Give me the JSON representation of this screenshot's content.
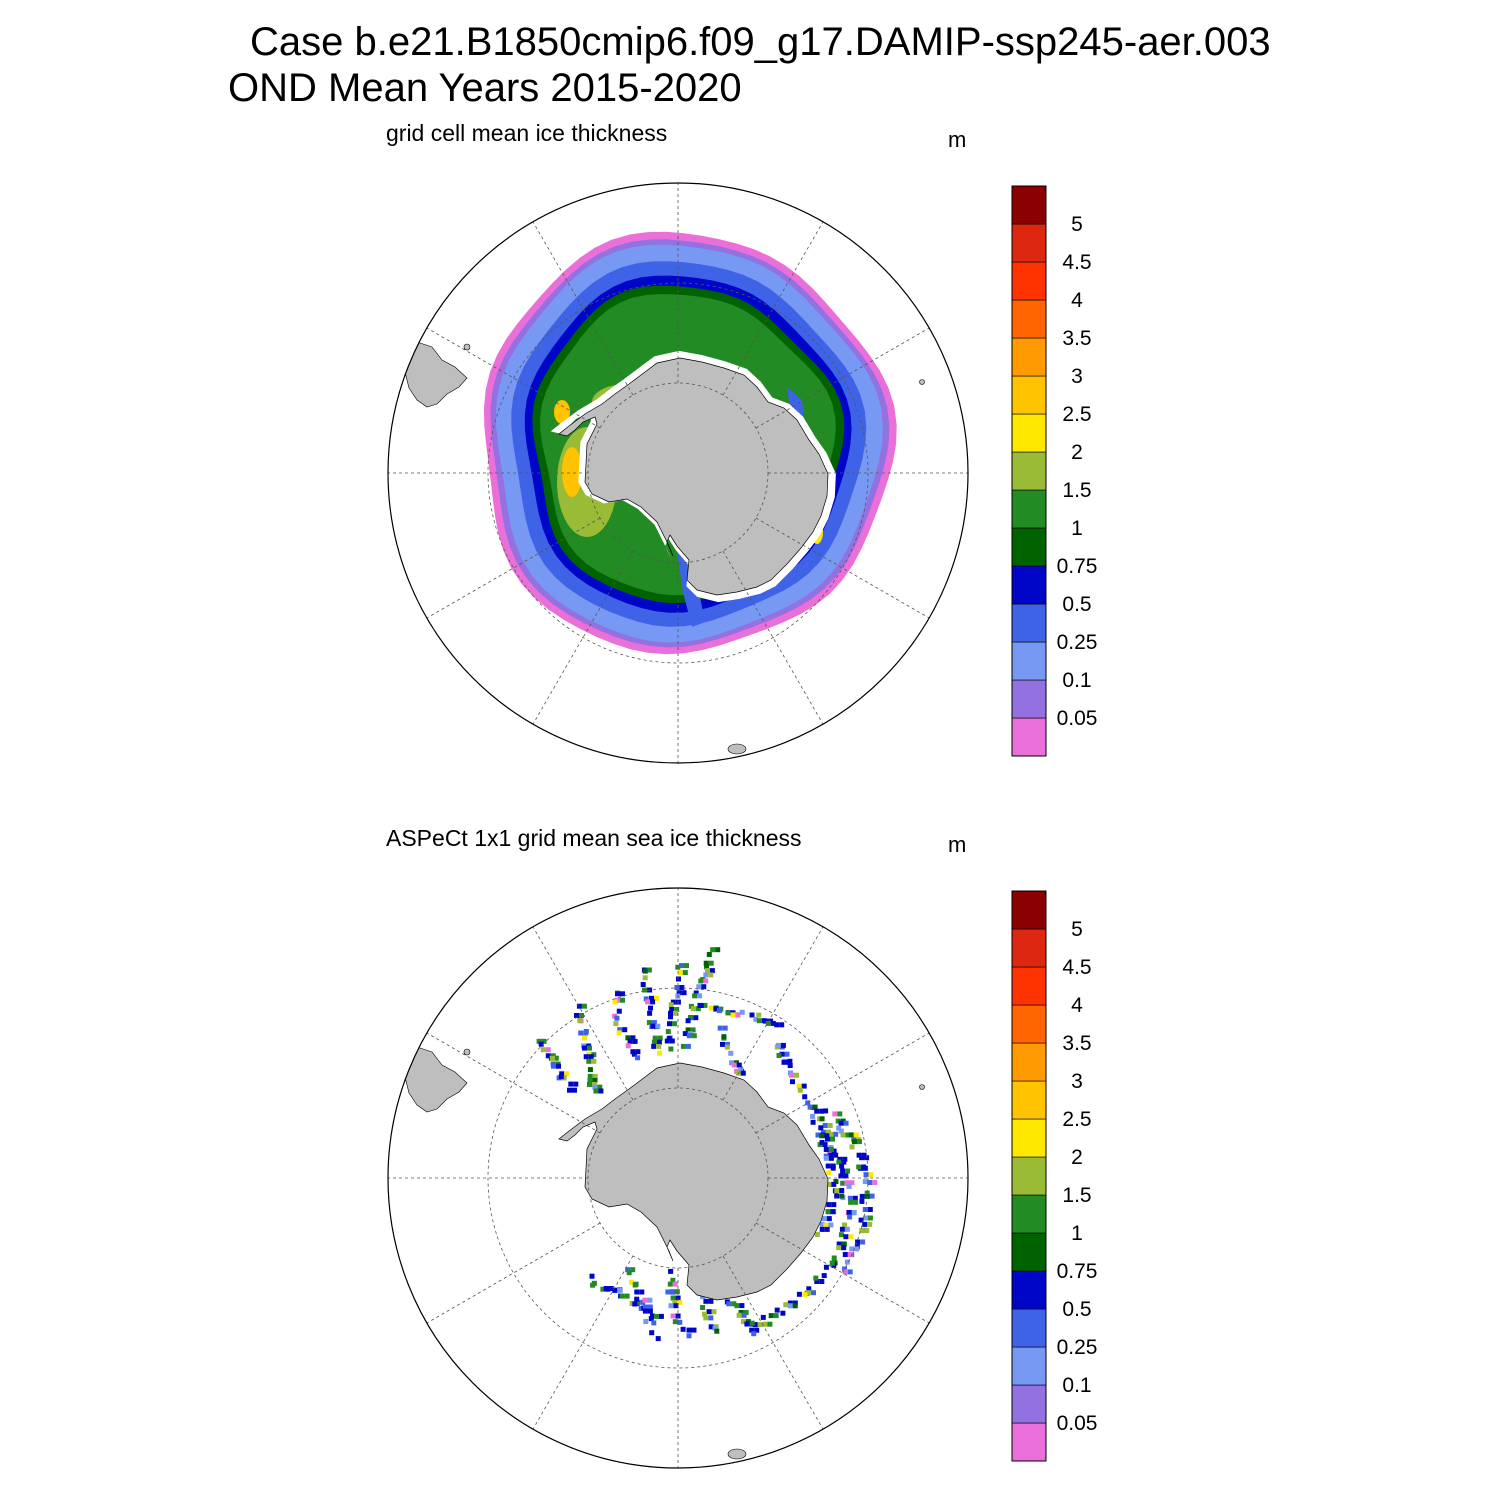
{
  "title_line1": "Case b.e21.B1850cmip6.f09_g17.DAMIP-ssp245-aer.003",
  "title_line2": "OND Mean   Years 2015-2020",
  "colors": {
    "land": "#bebebe",
    "ocean": "#ffffff",
    "grid": "#555555",
    "colorbar": [
      "#ea6fd9",
      "#9371e0",
      "#7799f3",
      "#3e63e6",
      "#0006c8",
      "#006300",
      "#238b23",
      "#9abb35",
      "#ffe800",
      "#ffc300",
      "#ff9a00",
      "#ff6500",
      "#ff3300",
      "#dd2711",
      "#8b0000"
    ]
  },
  "colorbar_labels": [
    "0.05",
    "0.1",
    "0.25",
    "0.5",
    "0.75",
    "1",
    "1.5",
    "2",
    "2.5",
    "3",
    "3.5",
    "4",
    "4.5",
    "5"
  ],
  "panels": [
    {
      "title": "grid cell mean ice thickness",
      "unit": "m",
      "type": "model"
    },
    {
      "title": "ASPeCt 1x1 grid mean sea ice thickness",
      "unit": "m",
      "type": "observations"
    }
  ]
}
